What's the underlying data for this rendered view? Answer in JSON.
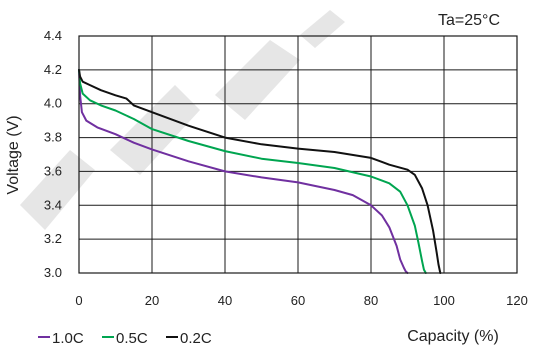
{
  "chart_data": {
    "type": "line",
    "title": "",
    "xlabel": "Capacity (%)",
    "ylabel": "Voltage (V)",
    "annotation": "Ta=25°C",
    "xlim": [
      0,
      120
    ],
    "ylim": [
      3.0,
      4.4
    ],
    "xticks": [
      0,
      20,
      40,
      60,
      80,
      100,
      120
    ],
    "yticks": [
      3.0,
      3.2,
      3.4,
      3.6,
      3.8,
      4.0,
      4.2,
      4.4
    ],
    "xtick_labels": [
      "0",
      "20",
      "40",
      "60",
      "80",
      "100",
      "120"
    ],
    "ytick_labels": [
      "3.0",
      "3.2",
      "3.4",
      "3.6",
      "3.8",
      "4.0",
      "4.2",
      "4.4"
    ],
    "grid": true,
    "legend_position": "bottom-left",
    "series": [
      {
        "name": "1.0C",
        "color": "#7030a0",
        "x": [
          0,
          0.3,
          0.8,
          2,
          5,
          10,
          15,
          20,
          30,
          40,
          50,
          60,
          70,
          75,
          80,
          83,
          85,
          87,
          88,
          89,
          89.5,
          90
        ],
        "y": [
          4.2,
          4.05,
          3.95,
          3.9,
          3.86,
          3.82,
          3.77,
          3.73,
          3.66,
          3.6,
          3.565,
          3.535,
          3.49,
          3.46,
          3.4,
          3.34,
          3.27,
          3.16,
          3.08,
          3.03,
          3.01,
          3.0
        ]
      },
      {
        "name": "0.5C",
        "color": "#00a550",
        "x": [
          0,
          0.3,
          1,
          3,
          6,
          10,
          15,
          20,
          30,
          40,
          50,
          60,
          70,
          80,
          85,
          88,
          90,
          92,
          93,
          94,
          94.5,
          95
        ],
        "y": [
          4.2,
          4.12,
          4.06,
          4.02,
          3.99,
          3.96,
          3.91,
          3.85,
          3.78,
          3.72,
          3.675,
          3.65,
          3.62,
          3.57,
          3.53,
          3.48,
          3.4,
          3.28,
          3.18,
          3.07,
          3.02,
          3.0
        ]
      },
      {
        "name": "0.2C",
        "color": "#111111",
        "x": [
          0,
          0.3,
          1,
          3,
          6,
          10,
          13,
          15,
          20,
          30,
          40,
          50,
          60,
          70,
          80,
          85,
          90,
          92,
          94,
          95.5,
          97,
          98,
          98.5,
          99
        ],
        "y": [
          4.2,
          4.16,
          4.13,
          4.11,
          4.08,
          4.05,
          4.03,
          3.99,
          3.95,
          3.87,
          3.8,
          3.76,
          3.735,
          3.715,
          3.68,
          3.64,
          3.61,
          3.58,
          3.5,
          3.4,
          3.25,
          3.12,
          3.05,
          3.0
        ]
      }
    ]
  }
}
